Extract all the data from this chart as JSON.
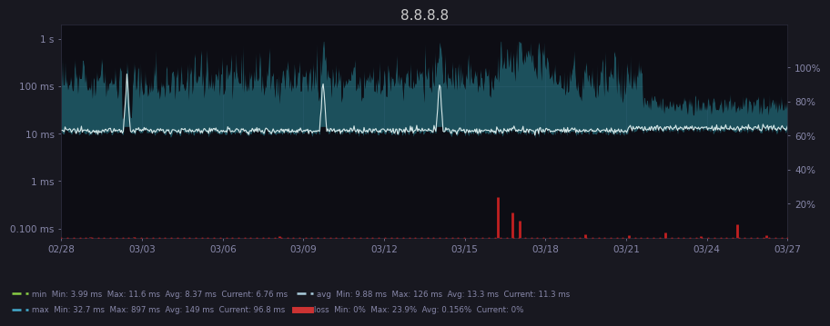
{
  "title": "8.8.8.8",
  "bg_color": "#181820",
  "plot_bg_color": "#0d0d14",
  "title_color": "#cccccc",
  "x_tick_labels": [
    "02/28",
    "03/03",
    "03/06",
    "03/09",
    "03/12",
    "03/15",
    "03/18",
    "03/21",
    "03/24",
    "03/27"
  ],
  "y_left_ticks_labels": [
    "0.100 ms",
    "1 ms",
    "10 ms",
    "100 ms",
    "1 s"
  ],
  "y_left_ticks_vals": [
    -1,
    0,
    1,
    2,
    3
  ],
  "y_right_ticks_labels": [
    "20%",
    "40%",
    "60%",
    "80%",
    "100%"
  ],
  "y_right_ticks_vals": [
    20,
    40,
    60,
    80,
    100
  ],
  "fill_color_teal": "#2a8899",
  "avg_line_color": "#e0f0f0",
  "min_line_color": "#88dd88",
  "loss_color": "#cc2222",
  "grid_color": "#2a2a3a",
  "axis_label_color": "#8888aa",
  "tick_label_color": "#8888aa",
  "ylim_min": -1.2,
  "ylim_max": 3.3,
  "loss_ylim_max": 125,
  "n_points": 800,
  "legend_min_color": "#88cc44",
  "legend_avg_color": "#aaccdd",
  "legend_max_color": "#44aacc",
  "legend_loss_color": "#cc3333",
  "legend_min_label": "min  Min: 3.99 ms  Max: 11.6 ms  Avg: 8.37 ms  Current: 6.76 ms",
  "legend_avg_label": "avg  Min: 9.88 ms  Max: 126 ms  Avg: 13.3 ms  Current: 11.3 ms",
  "legend_max_label": "max  Min: 32.7 ms  Max: 897 ms  Avg: 149 ms  Current: 96.8 ms",
  "legend_loss_label": "loss  Min: 0%  Max: 23.9%  Avg: 0.156%  Current: 0%"
}
